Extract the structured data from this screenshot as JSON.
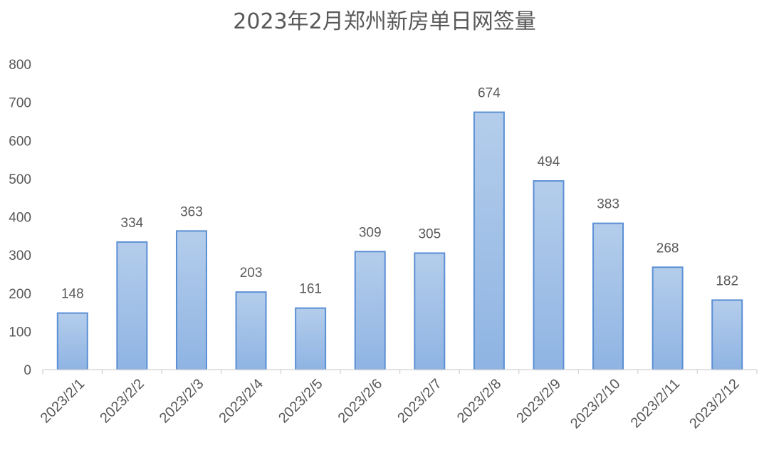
{
  "chart_data": {
    "type": "bar",
    "title": "2023年2月郑州新房单日网签量",
    "categories": [
      "2023/2/1",
      "2023/2/2",
      "2023/2/3",
      "2023/2/4",
      "2023/2/5",
      "2023/2/6",
      "2023/2/7",
      "2023/2/8",
      "2023/2/9",
      "2023/2/10",
      "2023/2/11",
      "2023/2/12"
    ],
    "values": [
      148,
      334,
      363,
      203,
      161,
      309,
      305,
      674,
      494,
      383,
      268,
      182
    ],
    "ylim": [
      0,
      800
    ],
    "yticks": [
      0,
      100,
      200,
      300,
      400,
      500,
      600,
      700,
      800
    ],
    "grid": false,
    "legend": "none",
    "data_labels": true,
    "colors": {
      "bar_top": "#b4cdeb",
      "bar_bottom": "#8fb4e3",
      "bar_edge": "#5b8fd4",
      "text": "#595959",
      "axis": "#d9d9d9"
    }
  }
}
